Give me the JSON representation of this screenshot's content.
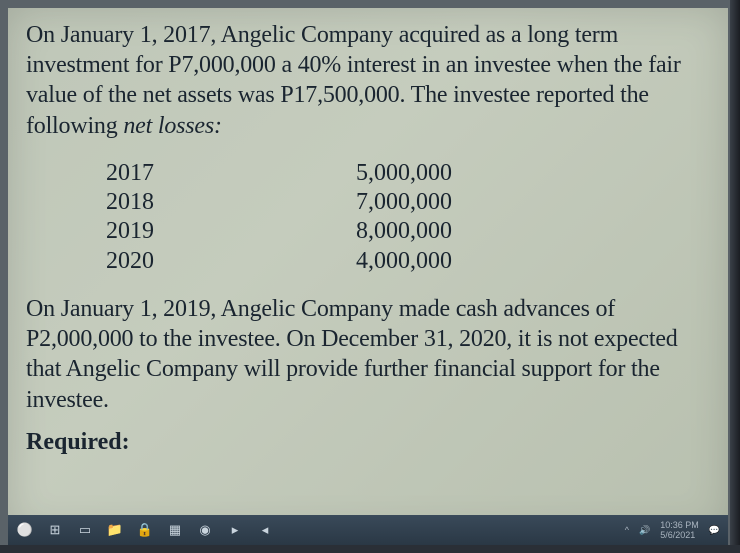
{
  "problem": {
    "p1": "On January 1, 2017, Angelic Company acquired as a long term investment for P7,000,000 a 40% interest in an investee when the fair value of the net assets was P17,500,000. The investee reported the following ",
    "p1_ital": "net losses:",
    "losses": [
      {
        "year": "2017",
        "amount": "5,000,000"
      },
      {
        "year": "2018",
        "amount": "7,000,000"
      },
      {
        "year": "2019",
        "amount": "8,000,000"
      },
      {
        "year": "2020",
        "amount": "4,000,000"
      }
    ],
    "p2": "On January 1, 2019, Angelic Company made cash advances of P2,000,000 to the investee. On December 31, 2020, it is not expected that Angelic Company will provide further financial support for the investee.",
    "required": "Required:"
  },
  "taskbar": {
    "icons": [
      "⚪",
      "⊞",
      "▭",
      "📁",
      "🔒",
      "▦",
      "◉",
      "▸",
      "◂"
    ],
    "time": "10:36 PM",
    "date": "5/6/2021"
  },
  "colors": {
    "paper": "#bfc7b8",
    "text": "#1a2530",
    "taskbar": "#2a3845"
  }
}
